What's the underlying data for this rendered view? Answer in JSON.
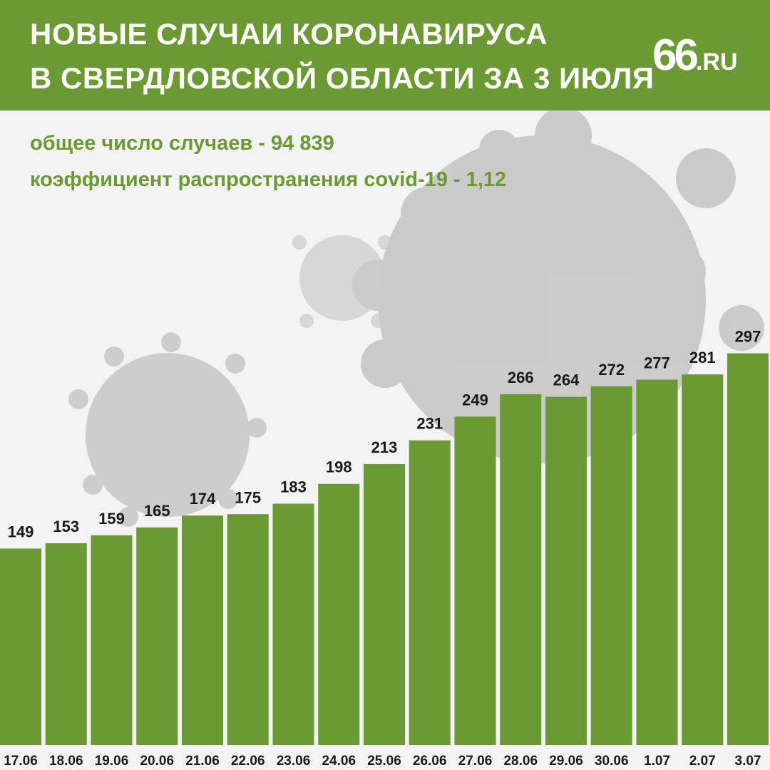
{
  "header": {
    "title_line1": "НОВЫЕ СЛУЧАИ КОРОНАВИРУСА",
    "title_line2": "В СВЕРДЛОВСКОЙ ОБЛАСТИ ЗА 3 ИЮЛЯ",
    "logo_number": "66",
    "logo_domain": ".RU"
  },
  "stats": {
    "total_cases": "общее число случаев - 94 839",
    "spread_coefficient": "коэффициент распространения covid-19 - 1,12"
  },
  "colors": {
    "accent": "#6b9a32",
    "bar": "#6b9a32",
    "text_dark": "#1a1a1a",
    "header_text": "#ffffff"
  },
  "chart_data": {
    "type": "bar",
    "title": "",
    "xlabel": "",
    "ylabel": "",
    "categories": [
      "17.06",
      "18.06",
      "19.06",
      "20.06",
      "21.06",
      "22.06",
      "23.06",
      "24.06",
      "25.06",
      "26.06",
      "27.06",
      "28.06",
      "29.06",
      "30.06",
      "1.07",
      "2.07",
      "3.07"
    ],
    "values": [
      149,
      153,
      159,
      165,
      174,
      175,
      183,
      198,
      213,
      231,
      249,
      266,
      264,
      272,
      277,
      281,
      297
    ],
    "grid": false,
    "legend": "none"
  }
}
